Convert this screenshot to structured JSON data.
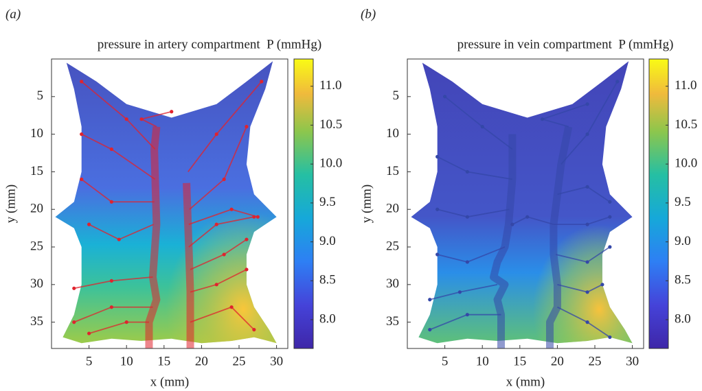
{
  "chart_data": [
    {
      "type": "field",
      "panel": "(a)",
      "title": "pressure in artery compartment  P (mmHg)",
      "xlabel": "x (mm)",
      "ylabel": "y (mm)",
      "xlim": [
        0,
        31.5
      ],
      "ylim": [
        0,
        38.5
      ],
      "yreverse": true,
      "xticks": [
        5,
        10,
        15,
        20,
        25,
        30
      ],
      "yticks": [
        5,
        10,
        15,
        20,
        25,
        30,
        35
      ],
      "clim": [
        7.63,
        11.35
      ],
      "cticks": [
        {
          "value": 8,
          "label": "8.0"
        },
        {
          "value": 8.5,
          "label": "8.5"
        },
        {
          "value": 9,
          "label": "9.0"
        },
        {
          "value": 9.5,
          "label": "9.5"
        },
        {
          "value": 10,
          "label": "10.0"
        },
        {
          "value": 10.5,
          "label": "10.5"
        },
        {
          "value": 11,
          "label": "11.0"
        }
      ],
      "vessel_color": "#e0232e"
    },
    {
      "type": "field",
      "panel": "(b)",
      "title": "pressure in vein compartment  P (mmHg)",
      "xlabel": "x (mm)",
      "ylabel": "y (mm)",
      "xlim": [
        0,
        31.5
      ],
      "ylim": [
        0,
        38.5
      ],
      "yreverse": true,
      "xticks": [
        5,
        10,
        15,
        20,
        25,
        30
      ],
      "yticks": [
        5,
        10,
        15,
        20,
        25,
        30,
        35
      ],
      "clim": [
        7.63,
        11.35
      ],
      "cticks": [
        {
          "value": 8,
          "label": "8.0"
        },
        {
          "value": 8.5,
          "label": "8.5"
        },
        {
          "value": 9,
          "label": "9.0"
        },
        {
          "value": 9.5,
          "label": "9.5"
        },
        {
          "value": 10,
          "label": "10.0"
        },
        {
          "value": 10.5,
          "label": "10.5"
        },
        {
          "value": 11,
          "label": "11.0"
        }
      ],
      "vessel_color": "#3447a8"
    }
  ]
}
